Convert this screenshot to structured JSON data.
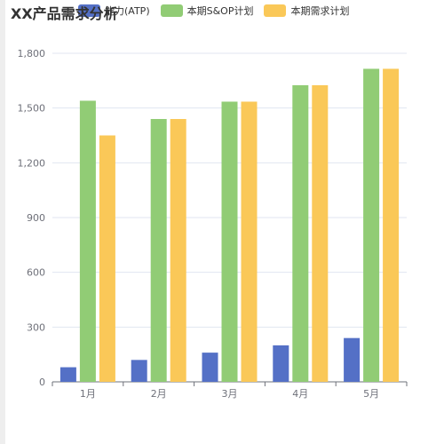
{
  "title": "XX产品需求分析",
  "colors": {
    "atp": "#5470c6",
    "sop": "#91cc75",
    "demand": "#fac858"
  },
  "chart_data": {
    "type": "bar",
    "title": "XX产品需求分析",
    "categories": [
      "1月",
      "2月",
      "3月",
      "4月",
      "5月"
    ],
    "series": [
      {
        "name": "能力(ATP)",
        "values": [
          80,
          120,
          160,
          200,
          240
        ]
      },
      {
        "name": "本期S&OP计划",
        "values": [
          1540,
          1440,
          1535,
          1625,
          1715
        ]
      },
      {
        "name": "本期需求计划",
        "values": [
          1350,
          1440,
          1535,
          1625,
          1715
        ]
      }
    ],
    "ylim": [
      0,
      1800
    ],
    "yticks": [
      "0",
      "300",
      "600",
      "900",
      "1,200",
      "1,500",
      "1,800"
    ],
    "ytick_values": [
      0,
      300,
      600,
      900,
      1200,
      1500,
      1800
    ],
    "grid": true,
    "legend_position": "top"
  }
}
